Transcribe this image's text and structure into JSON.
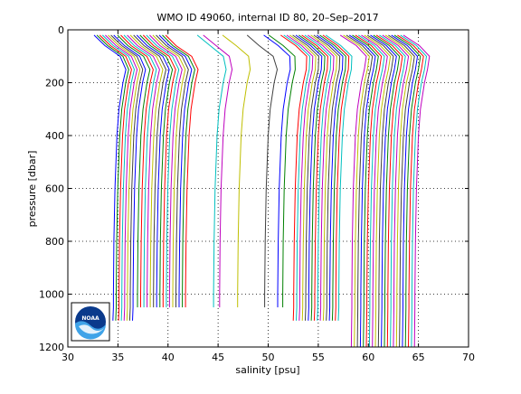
{
  "chart_data": {
    "type": "line",
    "title": "WMO ID 49060, internal ID 80, 20–Sep–2017",
    "xlabel": "salinity [psu]",
    "ylabel": "pressure [dbar]",
    "xlim": [
      30,
      70
    ],
    "ylim": [
      0,
      1200
    ],
    "y_reversed": true,
    "grid": "dotted",
    "xticks": [
      30,
      35,
      40,
      45,
      50,
      55,
      60,
      65,
      70
    ],
    "yticks": [
      0,
      200,
      400,
      600,
      800,
      1000,
      1200
    ],
    "xtick_labels": [
      "30",
      "35",
      "40",
      "45",
      "50",
      "55",
      "60",
      "65",
      "70"
    ],
    "ytick_labels": [
      "0",
      "200",
      "400",
      "600",
      "800",
      "1000",
      "1200"
    ],
    "colors": [
      "#0000ff",
      "#008000",
      "#ff0000",
      "#00bfbf",
      "#bf00bf",
      "#bfbf00",
      "#404040"
    ],
    "logo": "NOAA",
    "series_note": "Many overlaid vertical profiles; values below are approximate salinity at each pressure level for every profile.",
    "pressure_levels": [
      20,
      60,
      100,
      150,
      200,
      300,
      400,
      600,
      800,
      1000,
      1050
    ],
    "groups": [
      {
        "base": 34.6,
        "count": 8,
        "spacing": 0.28,
        "max_p": 1100,
        "surface_offset": -0.6
      },
      {
        "base": 37.0,
        "count": 16,
        "spacing": 0.32,
        "max_p": 1050,
        "surface_offset": -0.8
      },
      {
        "base": 44.6,
        "count": 2,
        "spacing": 0.6,
        "max_p": 1050,
        "surface_offset": 0.4
      },
      {
        "base": 47.0,
        "count": 1,
        "spacing": 0.5,
        "max_p": 1050,
        "surface_offset": 0.8
      },
      {
        "base": 49.7,
        "count": 1,
        "spacing": 0.5,
        "max_p": 1050,
        "surface_offset": 0.0
      },
      {
        "base": 51.0,
        "count": 2,
        "spacing": 0.5,
        "max_p": 1050,
        "surface_offset": 1.2
      },
      {
        "base": 52.6,
        "count": 16,
        "spacing": 0.3,
        "max_p": 1100,
        "surface_offset": 1.5
      },
      {
        "base": 58.4,
        "count": 22,
        "spacing": 0.3,
        "max_p": 1200,
        "surface_offset": 2.0
      }
    ]
  }
}
